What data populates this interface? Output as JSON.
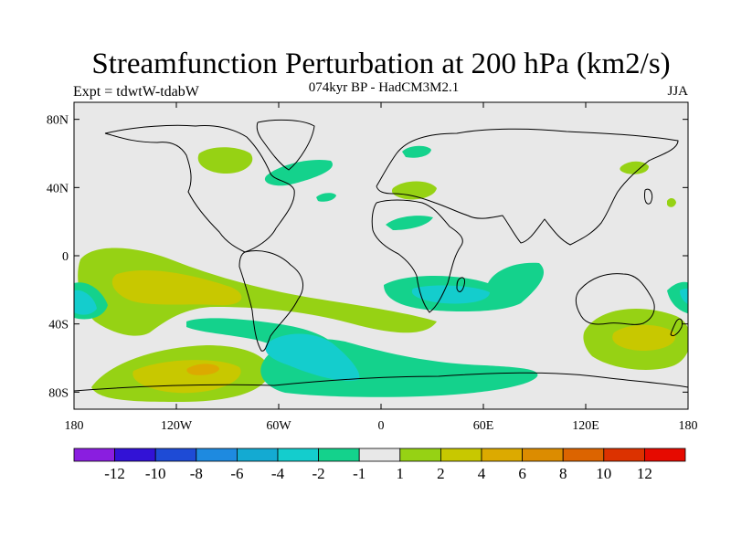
{
  "title": "Streamfunction Perturbation at 200 hPa (km2/s)",
  "subtitle_left": "Expt = tdwtW-tdabW",
  "subtitle_center": "074kyr BP - HadCM3M2.1",
  "subtitle_right": "JJA",
  "map": {
    "projection": "cylindrical equidistant",
    "lon_range": [
      -180,
      180
    ],
    "lat_range": [
      -90,
      90
    ],
    "background_color": "#e8e8e8",
    "y_ticks": [
      {
        "label": "80N",
        "lat": 80
      },
      {
        "label": "40N",
        "lat": 40
      },
      {
        "label": "0",
        "lat": 0
      },
      {
        "label": "40S",
        "lat": -40
      },
      {
        "label": "80S",
        "lat": -80
      }
    ],
    "x_ticks": [
      {
        "label": "180",
        "lon": -180
      },
      {
        "label": "120W",
        "lon": -120
      },
      {
        "label": "60W",
        "lon": -60
      },
      {
        "label": "0",
        "lon": 0
      },
      {
        "label": "60E",
        "lon": 60
      },
      {
        "label": "120E",
        "lon": 120
      },
      {
        "label": "180",
        "lon": 180
      }
    ]
  },
  "colorbar": {
    "colors": [
      "#8a1ee0",
      "#3212d6",
      "#1e4bd6",
      "#1e8ae0",
      "#14aad2",
      "#14cdcd",
      "#14d28c",
      "#e8e8e8",
      "#96d214",
      "#c8c800",
      "#dcaa00",
      "#dc8c00",
      "#dc6400",
      "#dc3200",
      "#e60a00"
    ],
    "labels": [
      "-12",
      "-10",
      "-8",
      "-6",
      "-4",
      "-2",
      "-1",
      "1",
      "2",
      "4",
      "6",
      "8",
      "10",
      "12"
    ]
  }
}
